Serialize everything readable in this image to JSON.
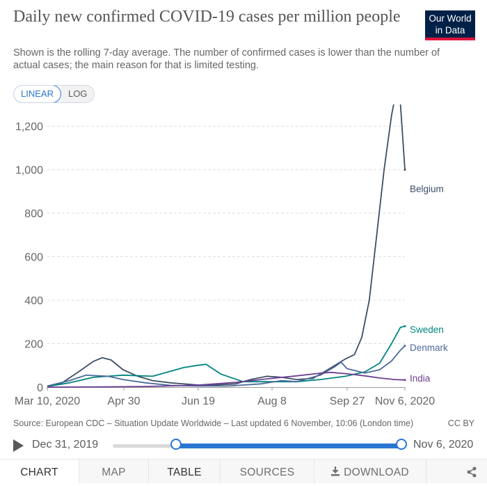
{
  "header": {
    "title": "Daily new confirmed COVID-19 cases per million people",
    "subtitle": "Shown is the rolling 7-day average. The number of confirmed cases is lower than the number of actual cases; the main reason for that is limited testing.",
    "logo_line1": "Our World",
    "logo_line2": "in Data"
  },
  "scale_toggle": {
    "linear_label": "LINEAR",
    "log_label": "LOG",
    "selected": "LINEAR"
  },
  "chart_data": {
    "type": "line",
    "title": "Daily new confirmed COVID-19 cases per million people",
    "x_ticks": [
      "Mar 10, 2020",
      "Apr 30",
      "Jun 19",
      "Aug 8",
      "Sep 27",
      "Nov 6, 2020"
    ],
    "x_range": [
      "2020-03-10",
      "2020-11-06"
    ],
    "y_ticks": [
      "0",
      "200",
      "400",
      "600",
      "800",
      "1,000",
      "1,200"
    ],
    "ylim": [
      0,
      1300
    ],
    "grid": "horizontal-dashed",
    "legend": "labels at line ends",
    "series": [
      {
        "name": "Belgium",
        "color": "#3c4e66",
        "points": [
          [
            "2020-03-10",
            2
          ],
          [
            "2020-03-20",
            20
          ],
          [
            "2020-03-31",
            70
          ],
          [
            "2020-04-10",
            118
          ],
          [
            "2020-04-16",
            135
          ],
          [
            "2020-04-22",
            125
          ],
          [
            "2020-04-30",
            80
          ],
          [
            "2020-05-10",
            50
          ],
          [
            "2020-05-20",
            30
          ],
          [
            "2020-06-01",
            20
          ],
          [
            "2020-06-19",
            10
          ],
          [
            "2020-07-01",
            10
          ],
          [
            "2020-07-15",
            15
          ],
          [
            "2020-07-25",
            35
          ],
          [
            "2020-08-05",
            50
          ],
          [
            "2020-08-15",
            45
          ],
          [
            "2020-08-25",
            35
          ],
          [
            "2020-09-05",
            40
          ],
          [
            "2020-09-15",
            80
          ],
          [
            "2020-09-27",
            130
          ],
          [
            "2020-10-03",
            150
          ],
          [
            "2020-10-08",
            230
          ],
          [
            "2020-10-13",
            400
          ],
          [
            "2020-10-18",
            700
          ],
          [
            "2020-10-23",
            1000
          ],
          [
            "2020-10-28",
            1250
          ],
          [
            "2020-11-01",
            1390
          ],
          [
            "2020-11-03",
            1300
          ],
          [
            "2020-11-06",
            1000
          ]
        ]
      },
      {
        "name": "Sweden",
        "color": "#00847e",
        "points": [
          [
            "2020-03-10",
            3
          ],
          [
            "2020-03-25",
            20
          ],
          [
            "2020-04-10",
            45
          ],
          [
            "2020-04-30",
            55
          ],
          [
            "2020-05-20",
            50
          ],
          [
            "2020-06-10",
            90
          ],
          [
            "2020-06-19",
            100
          ],
          [
            "2020-06-25",
            105
          ],
          [
            "2020-07-05",
            60
          ],
          [
            "2020-07-20",
            25
          ],
          [
            "2020-08-08",
            25
          ],
          [
            "2020-08-25",
            25
          ],
          [
            "2020-09-10",
            35
          ],
          [
            "2020-09-27",
            50
          ],
          [
            "2020-10-10",
            70
          ],
          [
            "2020-10-20",
            110
          ],
          [
            "2020-10-28",
            200
          ],
          [
            "2020-11-03",
            275
          ],
          [
            "2020-11-06",
            280
          ]
        ]
      },
      {
        "name": "Denmark",
        "color": "#4c6a9c",
        "points": [
          [
            "2020-03-10",
            5
          ],
          [
            "2020-03-25",
            30
          ],
          [
            "2020-04-05",
            55
          ],
          [
            "2020-04-20",
            50
          ],
          [
            "2020-04-30",
            35
          ],
          [
            "2020-05-15",
            20
          ],
          [
            "2020-06-01",
            8
          ],
          [
            "2020-06-19",
            5
          ],
          [
            "2020-07-10",
            5
          ],
          [
            "2020-08-01",
            15
          ],
          [
            "2020-08-15",
            30
          ],
          [
            "2020-08-25",
            25
          ],
          [
            "2020-09-10",
            55
          ],
          [
            "2020-09-20",
            95
          ],
          [
            "2020-09-24",
            115
          ],
          [
            "2020-09-28",
            85
          ],
          [
            "2020-10-10",
            65
          ],
          [
            "2020-10-20",
            80
          ],
          [
            "2020-10-28",
            120
          ],
          [
            "2020-11-03",
            170
          ],
          [
            "2020-11-06",
            190
          ]
        ]
      },
      {
        "name": "India",
        "color": "#6d3e91",
        "points": [
          [
            "2020-03-10",
            0
          ],
          [
            "2020-04-15",
            1
          ],
          [
            "2020-05-15",
            3
          ],
          [
            "2020-06-19",
            9
          ],
          [
            "2020-07-15",
            22
          ],
          [
            "2020-08-08",
            40
          ],
          [
            "2020-08-25",
            52
          ],
          [
            "2020-09-10",
            64
          ],
          [
            "2020-09-17",
            68
          ],
          [
            "2020-09-27",
            62
          ],
          [
            "2020-10-10",
            52
          ],
          [
            "2020-10-20",
            42
          ],
          [
            "2020-10-30",
            35
          ],
          [
            "2020-11-06",
            33
          ]
        ]
      }
    ]
  },
  "footer": {
    "source": "Source: European CDC – Situation Update Worldwide – Last updated 6 November, 10:06 (London time)",
    "license": "CC BY"
  },
  "timeline": {
    "start_label": "Dec 31, 2019",
    "end_label": "Nov 6, 2020",
    "range_start_fraction": 0.22,
    "range_end_fraction": 1.0
  },
  "tabs": [
    {
      "label": "CHART",
      "name": "tab-chart"
    },
    {
      "label": "MAP",
      "name": "tab-map"
    },
    {
      "label": "TABLE",
      "name": "tab-table"
    },
    {
      "label": "SOURCES",
      "name": "tab-sources"
    },
    {
      "label": "DOWNLOAD",
      "name": "tab-download"
    }
  ],
  "icons": {
    "play": "play-icon",
    "download": "download-icon",
    "share": "share-icon"
  }
}
